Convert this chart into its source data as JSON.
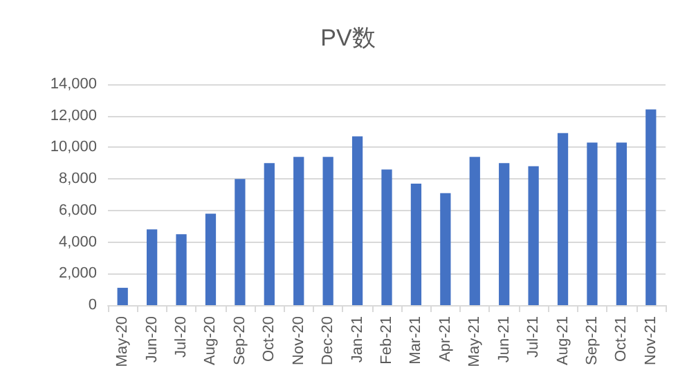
{
  "chart_data": {
    "type": "bar",
    "title": "PV数",
    "categories": [
      "May-20",
      "Jun-20",
      "Jul-20",
      "Aug-20",
      "Sep-20",
      "Oct-20",
      "Nov-20",
      "Dec-20",
      "Jan-21",
      "Feb-21",
      "Mar-21",
      "Apr-21",
      "May-21",
      "Jun-21",
      "Jul-21",
      "Aug-21",
      "Sep-21",
      "Oct-21",
      "Nov-21"
    ],
    "values": [
      1100,
      4800,
      4500,
      5800,
      8000,
      9000,
      9400,
      9400,
      10700,
      8600,
      7700,
      7100,
      9400,
      9000,
      8800,
      10900,
      10300,
      10300,
      12400
    ],
    "color": "#4472c4",
    "ylim": [
      0,
      14000
    ],
    "yticks": [
      0,
      {
        "value": 2000,
        "label": "2,000"
      },
      {
        "value": 4000,
        "label": "4,000"
      },
      {
        "value": 6000,
        "label": "6,000"
      },
      {
        "value": 8000,
        "label": "8,000"
      },
      {
        "value": 10000,
        "label": "10,000"
      },
      {
        "value": 12000,
        "label": "12,000"
      },
      {
        "value": 14000,
        "label": "14,000"
      }
    ],
    "grid": "y"
  }
}
